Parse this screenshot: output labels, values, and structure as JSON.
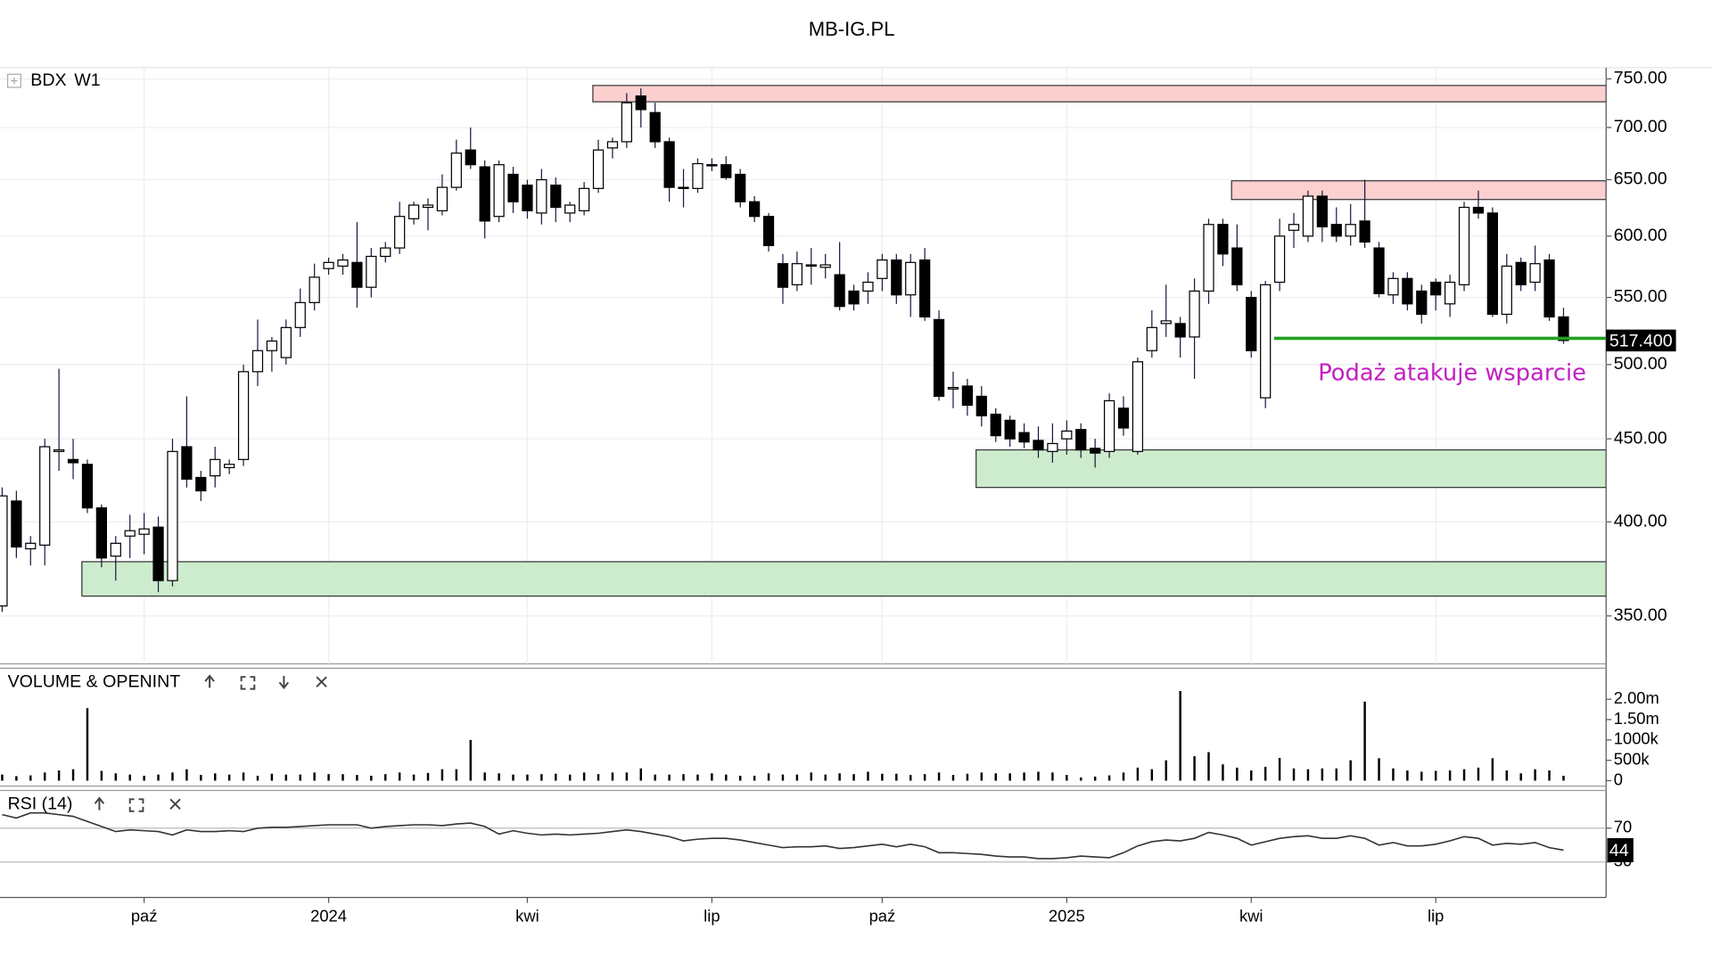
{
  "chart_data": [
    {
      "type": "candlestick",
      "title": "MB-IG.PL",
      "symbol": "BDX",
      "timeframe": "W1",
      "log": true,
      "grid": true,
      "categories": [
        null,
        null,
        null,
        null,
        null,
        null,
        null,
        null,
        null,
        null,
        "paź",
        null,
        null,
        null,
        null,
        null,
        null,
        null,
        null,
        null,
        null,
        null,
        null,
        "2024",
        null,
        null,
        null,
        null,
        null,
        null,
        null,
        null,
        null,
        null,
        null,
        null,
        null,
        "kwi",
        null,
        null,
        null,
        null,
        null,
        null,
        null,
        null,
        null,
        null,
        null,
        null,
        "lip",
        null,
        null,
        null,
        null,
        null,
        null,
        null,
        null,
        null,
        null,
        null,
        "paź",
        null,
        null,
        null,
        null,
        null,
        null,
        null,
        null,
        null,
        null,
        null,
        null,
        "2025",
        null,
        null,
        null,
        null,
        null,
        null,
        null,
        null,
        null,
        null,
        null,
        null,
        "kwi",
        null,
        null,
        null,
        null,
        null,
        null,
        null,
        null,
        null,
        null,
        null,
        null,
        "lip",
        null,
        null,
        null,
        null,
        null,
        null,
        null,
        null,
        null
      ],
      "open": [
        355,
        412,
        385,
        387,
        442,
        437,
        434,
        408,
        381,
        392,
        393,
        397,
        368,
        445,
        426,
        427,
        432,
        437,
        495,
        510,
        505,
        527,
        546,
        573,
        575,
        578,
        558,
        583,
        590,
        615,
        625,
        622,
        643,
        678,
        662,
        617,
        655,
        645,
        620,
        645,
        620,
        622,
        642,
        680,
        686,
        732,
        715,
        686,
        642,
        642,
        664,
        664,
        655,
        630,
        617,
        577,
        560,
        576,
        574,
        568,
        555,
        555,
        565,
        580,
        552,
        580,
        533,
        483,
        485,
        478,
        466,
        462,
        454,
        449,
        442,
        450,
        456,
        444,
        442,
        470,
        442,
        510,
        530,
        530,
        520,
        555,
        610,
        590,
        550,
        477,
        562,
        605,
        600,
        635,
        610,
        600,
        613,
        590,
        552,
        565,
        555,
        562,
        545,
        560,
        625,
        620,
        537,
        578,
        562,
        580,
        535
      ],
      "high": [
        420,
        418,
        392,
        450,
        497,
        450,
        437,
        410,
        392,
        404,
        405,
        403,
        450,
        478,
        430,
        445,
        437,
        500,
        533,
        520,
        533,
        557,
        577,
        582,
        585,
        612,
        590,
        595,
        630,
        630,
        633,
        655,
        688,
        700,
        668,
        668,
        662,
        650,
        660,
        652,
        630,
        648,
        688,
        690,
        735,
        740,
        725,
        690,
        660,
        670,
        670,
        672,
        660,
        635,
        620,
        585,
        587,
        590,
        585,
        595,
        560,
        570,
        585,
        585,
        585,
        590,
        540,
        495,
        490,
        485,
        470,
        465,
        460,
        458,
        460,
        462,
        460,
        450,
        480,
        478,
        505,
        540,
        560,
        535,
        565,
        615,
        615,
        610,
        555,
        563,
        615,
        620,
        640,
        640,
        625,
        628,
        650,
        595,
        570,
        570,
        560,
        565,
        568,
        630,
        640,
        625,
        585,
        582,
        592,
        585,
        542
      ],
      "low": [
        352,
        380,
        376,
        376,
        430,
        425,
        405,
        375,
        368,
        380,
        382,
        362,
        365,
        420,
        412,
        420,
        428,
        433,
        485,
        495,
        500,
        520,
        540,
        568,
        568,
        542,
        550,
        578,
        585,
        610,
        605,
        618,
        640,
        660,
        598,
        612,
        620,
        615,
        610,
        612,
        612,
        618,
        638,
        670,
        680,
        700,
        680,
        630,
        625,
        638,
        658,
        650,
        625,
        612,
        587,
        545,
        555,
        560,
        565,
        540,
        540,
        545,
        555,
        545,
        535,
        532,
        475,
        470,
        465,
        458,
        448,
        445,
        444,
        438,
        435,
        440,
        438,
        432,
        438,
        452,
        440,
        505,
        520,
        505,
        490,
        545,
        575,
        555,
        505,
        470,
        555,
        590,
        595,
        595,
        595,
        592,
        590,
        550,
        545,
        540,
        530,
        540,
        535,
        555,
        615,
        535,
        530,
        555,
        555,
        532,
        515
      ],
      "close": [
        415,
        386,
        388,
        445,
        443,
        435,
        408,
        380,
        388,
        395,
        396,
        368,
        442,
        425,
        418,
        437,
        434,
        495,
        510,
        517,
        527,
        546,
        566,
        578,
        580,
        558,
        583,
        590,
        617,
        627,
        627,
        643,
        675,
        664,
        613,
        664,
        630,
        622,
        650,
        625,
        627,
        642,
        678,
        686,
        725,
        718,
        686,
        643,
        643,
        665,
        663,
        652,
        630,
        617,
        592,
        558,
        577,
        575,
        576,
        543,
        545,
        562,
        580,
        552,
        578,
        535,
        478,
        484,
        472,
        465,
        452,
        450,
        448,
        443,
        447,
        455,
        443,
        441,
        475,
        457,
        502,
        527,
        532,
        520,
        555,
        610,
        585,
        560,
        510,
        560,
        600,
        610,
        635,
        608,
        600,
        610,
        595,
        553,
        565,
        545,
        537,
        552,
        562,
        625,
        620,
        537,
        575,
        560,
        577,
        535,
        517.4
      ],
      "last_label": "517.400",
      "up_color": "#ffffff",
      "down_color": "#000000",
      "wick_color": "#1a1a40",
      "ylim": [
        327,
        762
      ],
      "yticks": [
        {
          "value": 350,
          "label": "350.00"
        },
        {
          "value": 400,
          "label": "400.00"
        },
        {
          "value": 450,
          "label": "450.00"
        },
        {
          "value": 500,
          "label": "500.00"
        },
        {
          "value": 550,
          "label": "550.00"
        },
        {
          "value": 600,
          "label": "600.00"
        },
        {
          "value": 650,
          "label": "650.00"
        },
        {
          "value": 700,
          "label": "700.00"
        },
        {
          "value": 750,
          "label": "750.00"
        }
      ],
      "zones": [
        {
          "low": 726,
          "high": 743,
          "start": 42,
          "color": "#fdd0d0"
        },
        {
          "low": 632,
          "high": 649,
          "start": 87,
          "color": "#fdd0d0"
        },
        {
          "low": 420,
          "high": 443,
          "start": 69,
          "color": "#cdeccd"
        },
        {
          "low": 360,
          "high": 378,
          "start": 6,
          "color": "#cdeccd"
        }
      ],
      "support_line": {
        "value": 519,
        "start": 89,
        "color": "#22a022"
      },
      "annotation": {
        "text": "Podaż atakuje wsparcie",
        "color": "#c21ec2"
      }
    },
    {
      "type": "bar",
      "title": "VOLUME & OPENINT",
      "color": "#000000",
      "values": [
        150000,
        110000,
        130000,
        200000,
        250000,
        280000,
        1780000,
        240000,
        180000,
        150000,
        120000,
        150000,
        200000,
        280000,
        140000,
        180000,
        150000,
        200000,
        120000,
        170000,
        150000,
        150000,
        200000,
        160000,
        160000,
        140000,
        120000,
        160000,
        200000,
        150000,
        190000,
        280000,
        280000,
        1000000,
        200000,
        180000,
        150000,
        150000,
        160000,
        170000,
        150000,
        200000,
        160000,
        200000,
        200000,
        300000,
        150000,
        150000,
        160000,
        150000,
        180000,
        150000,
        120000,
        120000,
        180000,
        150000,
        150000,
        200000,
        150000,
        180000,
        160000,
        220000,
        170000,
        170000,
        140000,
        160000,
        200000,
        140000,
        170000,
        200000,
        180000,
        180000,
        200000,
        220000,
        200000,
        140000,
        80000,
        100000,
        130000,
        200000,
        320000,
        280000,
        500000,
        2200000,
        600000,
        700000,
        400000,
        320000,
        250000,
        340000,
        560000,
        300000,
        280000,
        300000,
        300000,
        500000,
        1940000,
        550000,
        300000,
        250000,
        220000,
        240000,
        250000,
        280000,
        320000,
        550000,
        250000,
        180000,
        280000,
        250000,
        120000
      ],
      "ylim": [
        0,
        2600000
      ],
      "yticks": [
        0,
        {
          "value": 500000,
          "label": "500k"
        },
        {
          "value": 1000000,
          "label": "1000k"
        },
        {
          "value": 1500000,
          "label": "1.50m"
        },
        {
          "value": 2000000,
          "label": "2.00m"
        }
      ],
      "grid": false
    },
    {
      "type": "line",
      "title": "RSI (14)",
      "color": "#333333",
      "values": [
        86,
        82,
        88,
        88,
        86,
        84,
        78,
        72,
        66,
        68,
        67,
        66,
        62,
        68,
        66,
        66,
        67,
        66,
        70,
        71,
        71,
        72,
        73,
        74,
        74,
        74,
        70,
        72,
        73,
        74,
        74,
        73,
        75,
        76,
        72,
        63,
        67,
        64,
        62,
        63,
        62,
        63,
        64,
        66,
        68,
        66,
        63,
        60,
        55,
        57,
        58,
        58,
        56,
        53,
        50,
        47,
        48,
        48,
        49,
        46,
        47,
        49,
        51,
        48,
        51,
        48,
        41,
        41,
        40,
        39,
        37,
        36,
        36,
        34,
        34,
        35,
        37,
        36,
        35,
        41,
        49,
        54,
        56,
        55,
        58,
        65,
        62,
        58,
        50,
        54,
        58,
        60,
        61,
        58,
        58,
        61,
        58,
        50,
        53,
        49,
        49,
        51,
        55,
        60,
        58,
        50,
        52,
        51,
        53,
        47,
        44
      ],
      "ylim": [
        -12,
        112
      ],
      "yticks": [
        30,
        70
      ],
      "grid": true
    }
  ]
}
